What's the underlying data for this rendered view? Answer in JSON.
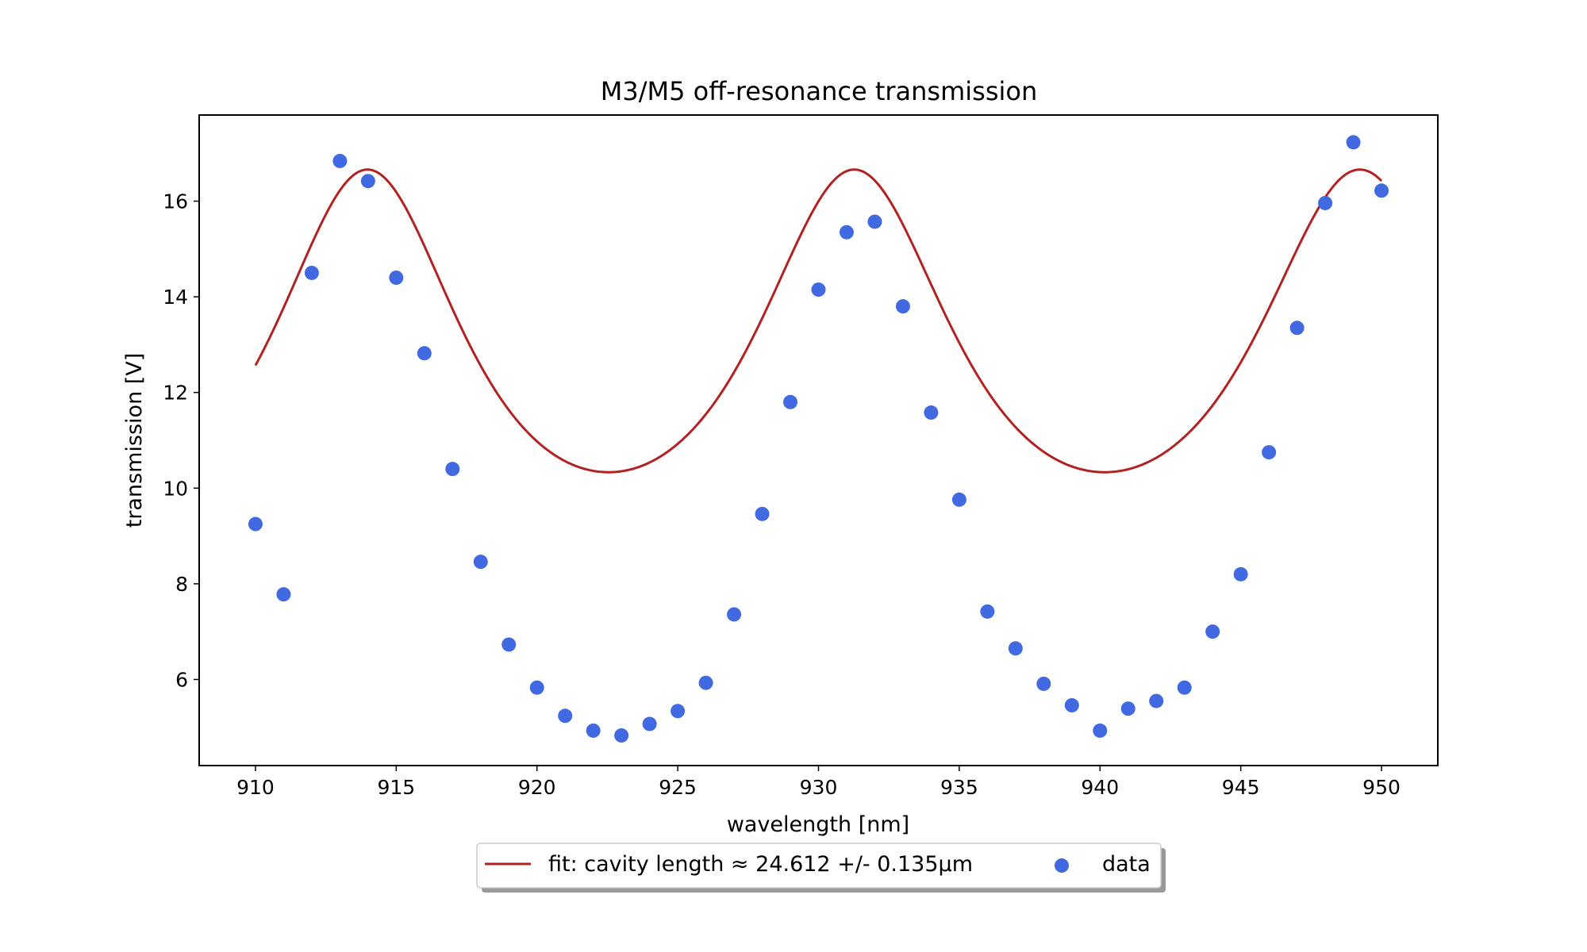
{
  "chart_data": {
    "type": "scatter",
    "title": "M3/M5 off-resonance transmission",
    "xlabel": "wavelength [nm]",
    "ylabel": "transmission [V]",
    "xlim": [
      908,
      952
    ],
    "ylim": [
      4.2,
      17.8
    ],
    "xticks": [
      910,
      915,
      920,
      925,
      930,
      935,
      940,
      945,
      950
    ],
    "yticks": [
      6,
      8,
      10,
      12,
      14,
      16
    ],
    "grid": false,
    "legend_position": "below plot, center",
    "series": [
      {
        "name": "fit: cavity length ≈ 24.612 +/- 0.135µm",
        "kind": "line",
        "color": "#b22222",
        "model": {
          "form": "airy",
          "offset": 5.06,
          "amplitude": 11.6,
          "coefficient_of_finesse": 1.2,
          "cavity_length_um": 24.612,
          "peak_wavelength_nm": 931.27
        },
        "x_range": [
          910,
          950
        ]
      },
      {
        "name": "data",
        "kind": "scatter",
        "color": "#4169e1",
        "x": [
          910,
          911,
          912,
          913,
          914,
          915,
          916,
          917,
          918,
          919,
          920,
          921,
          922,
          923,
          924,
          925,
          926,
          927,
          928,
          929,
          930,
          931,
          932,
          933,
          934,
          935,
          936,
          937,
          938,
          939,
          940,
          941,
          942,
          943,
          944,
          945,
          946,
          947,
          948,
          949,
          950
        ],
        "y": [
          9.25,
          7.78,
          14.5,
          16.84,
          16.42,
          14.4,
          12.82,
          10.4,
          8.46,
          6.73,
          5.83,
          5.24,
          4.93,
          4.83,
          5.07,
          5.34,
          5.93,
          7.36,
          9.46,
          11.8,
          14.15,
          15.35,
          15.57,
          13.8,
          11.58,
          9.76,
          7.42,
          6.65,
          5.91,
          5.46,
          4.93,
          5.39,
          5.55,
          5.83,
          7.0,
          8.2,
          10.75,
          13.35,
          15.96,
          17.23,
          16.22
        ]
      }
    ]
  }
}
